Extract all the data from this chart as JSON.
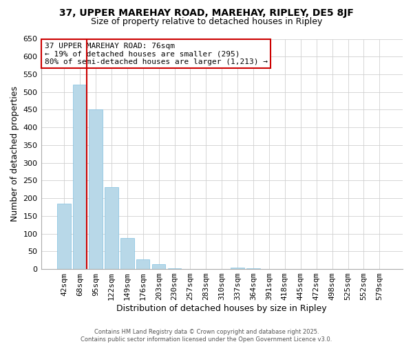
{
  "title": "37, UPPER MAREHAY ROAD, MAREHAY, RIPLEY, DE5 8JF",
  "subtitle": "Size of property relative to detached houses in Ripley",
  "xlabel": "Distribution of detached houses by size in Ripley",
  "ylabel": "Number of detached properties",
  "bar_labels": [
    "42sqm",
    "68sqm",
    "95sqm",
    "122sqm",
    "149sqm",
    "176sqm",
    "203sqm",
    "230sqm",
    "257sqm",
    "283sqm",
    "310sqm",
    "337sqm",
    "364sqm",
    "391sqm",
    "418sqm",
    "445sqm",
    "472sqm",
    "498sqm",
    "525sqm",
    "552sqm",
    "579sqm"
  ],
  "bar_values": [
    185,
    520,
    450,
    232,
    88,
    27,
    13,
    3,
    1,
    0,
    0,
    5,
    3,
    0,
    0,
    0,
    0,
    0,
    1,
    0,
    1
  ],
  "bar_color": "#b8d8e8",
  "bar_edge_color": "#7fbfdf",
  "vline_x_index": 1,
  "vline_color": "#cc0000",
  "ylim": [
    0,
    650
  ],
  "yticks": [
    0,
    50,
    100,
    150,
    200,
    250,
    300,
    350,
    400,
    450,
    500,
    550,
    600,
    650
  ],
  "annotation_title": "37 UPPER MAREHAY ROAD: 76sqm",
  "annotation_line1": "← 19% of detached houses are smaller (295)",
  "annotation_line2": "80% of semi-detached houses are larger (1,213) →",
  "annotation_box_color": "#cc0000",
  "footer_line1": "Contains HM Land Registry data © Crown copyright and database right 2025.",
  "footer_line2": "Contains public sector information licensed under the Open Government Licence v3.0.",
  "background_color": "#ffffff",
  "grid_color": "#d0d0d0",
  "title_fontsize": 10,
  "subtitle_fontsize": 9,
  "xlabel_fontsize": 9,
  "ylabel_fontsize": 9,
  "tick_fontsize": 8,
  "annotation_fontsize": 8,
  "footer_fontsize": 6
}
